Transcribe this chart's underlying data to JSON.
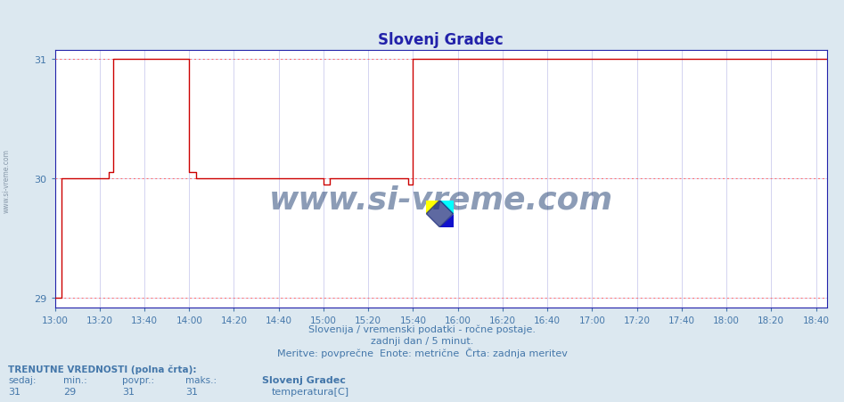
{
  "title": "Slovenj Gradec",
  "bg_color": "#dce8f0",
  "plot_bg_color": "#ffffff",
  "line_color": "#cc0000",
  "dotted_line_color": "#ff6666",
  "title_color": "#2222aa",
  "axis_color": "#2222aa",
  "tick_color": "#4477aa",
  "subtitle_color": "#4477aa",
  "grid_color": "#ccccee",
  "xlim_start": 780,
  "xlim_end": 1125,
  "ylim_min": 28.92,
  "ylim_max": 31.08,
  "yticks": [
    29,
    30,
    31
  ],
  "xtick_labels": [
    "13:00",
    "13:20",
    "13:40",
    "14:00",
    "14:20",
    "14:40",
    "15:00",
    "15:20",
    "15:40",
    "16:00",
    "16:20",
    "16:40",
    "17:00",
    "17:20",
    "17:40",
    "18:00",
    "18:20",
    "18:40"
  ],
  "xtick_values": [
    780,
    800,
    820,
    840,
    860,
    880,
    900,
    920,
    940,
    960,
    980,
    1000,
    1020,
    1040,
    1060,
    1080,
    1100,
    1120
  ],
  "subtitle1": "Slovenija / vremenski podatki - ročne postaje.",
  "subtitle2": "zadnji dan / 5 minut.",
  "subtitle3": "Meritve: povprečne  Enote: metrične  Črta: zadnja meritev",
  "footer_label1": "TRENUTNE VREDNOSTI (polna črta):",
  "footer_cols": [
    "sedaj:",
    "min.:",
    "povpr.:",
    "maks.:"
  ],
  "footer_vals": [
    "31",
    "29",
    "31",
    "31"
  ],
  "footer_station": "Slovenj Gradec",
  "footer_series": "temperatura[C]",
  "footer_swatch": "#cc0000",
  "watermark": "www.si-vreme.com",
  "watermark_color": "#1a3a6e",
  "step_x": [
    780,
    783,
    783,
    804,
    804,
    806,
    806,
    840,
    840,
    843,
    843,
    900,
    900,
    903,
    903,
    938,
    938,
    940,
    940,
    960,
    960,
    1125
  ],
  "step_y": [
    29.0,
    29.0,
    30.0,
    30.0,
    30.05,
    30.05,
    31.0,
    31.0,
    30.05,
    30.05,
    30.0,
    30.0,
    29.95,
    29.95,
    30.0,
    30.0,
    29.95,
    29.95,
    31.0,
    31.0,
    31.0,
    31.0
  ],
  "left_watermark": "www.si-vreme.com"
}
